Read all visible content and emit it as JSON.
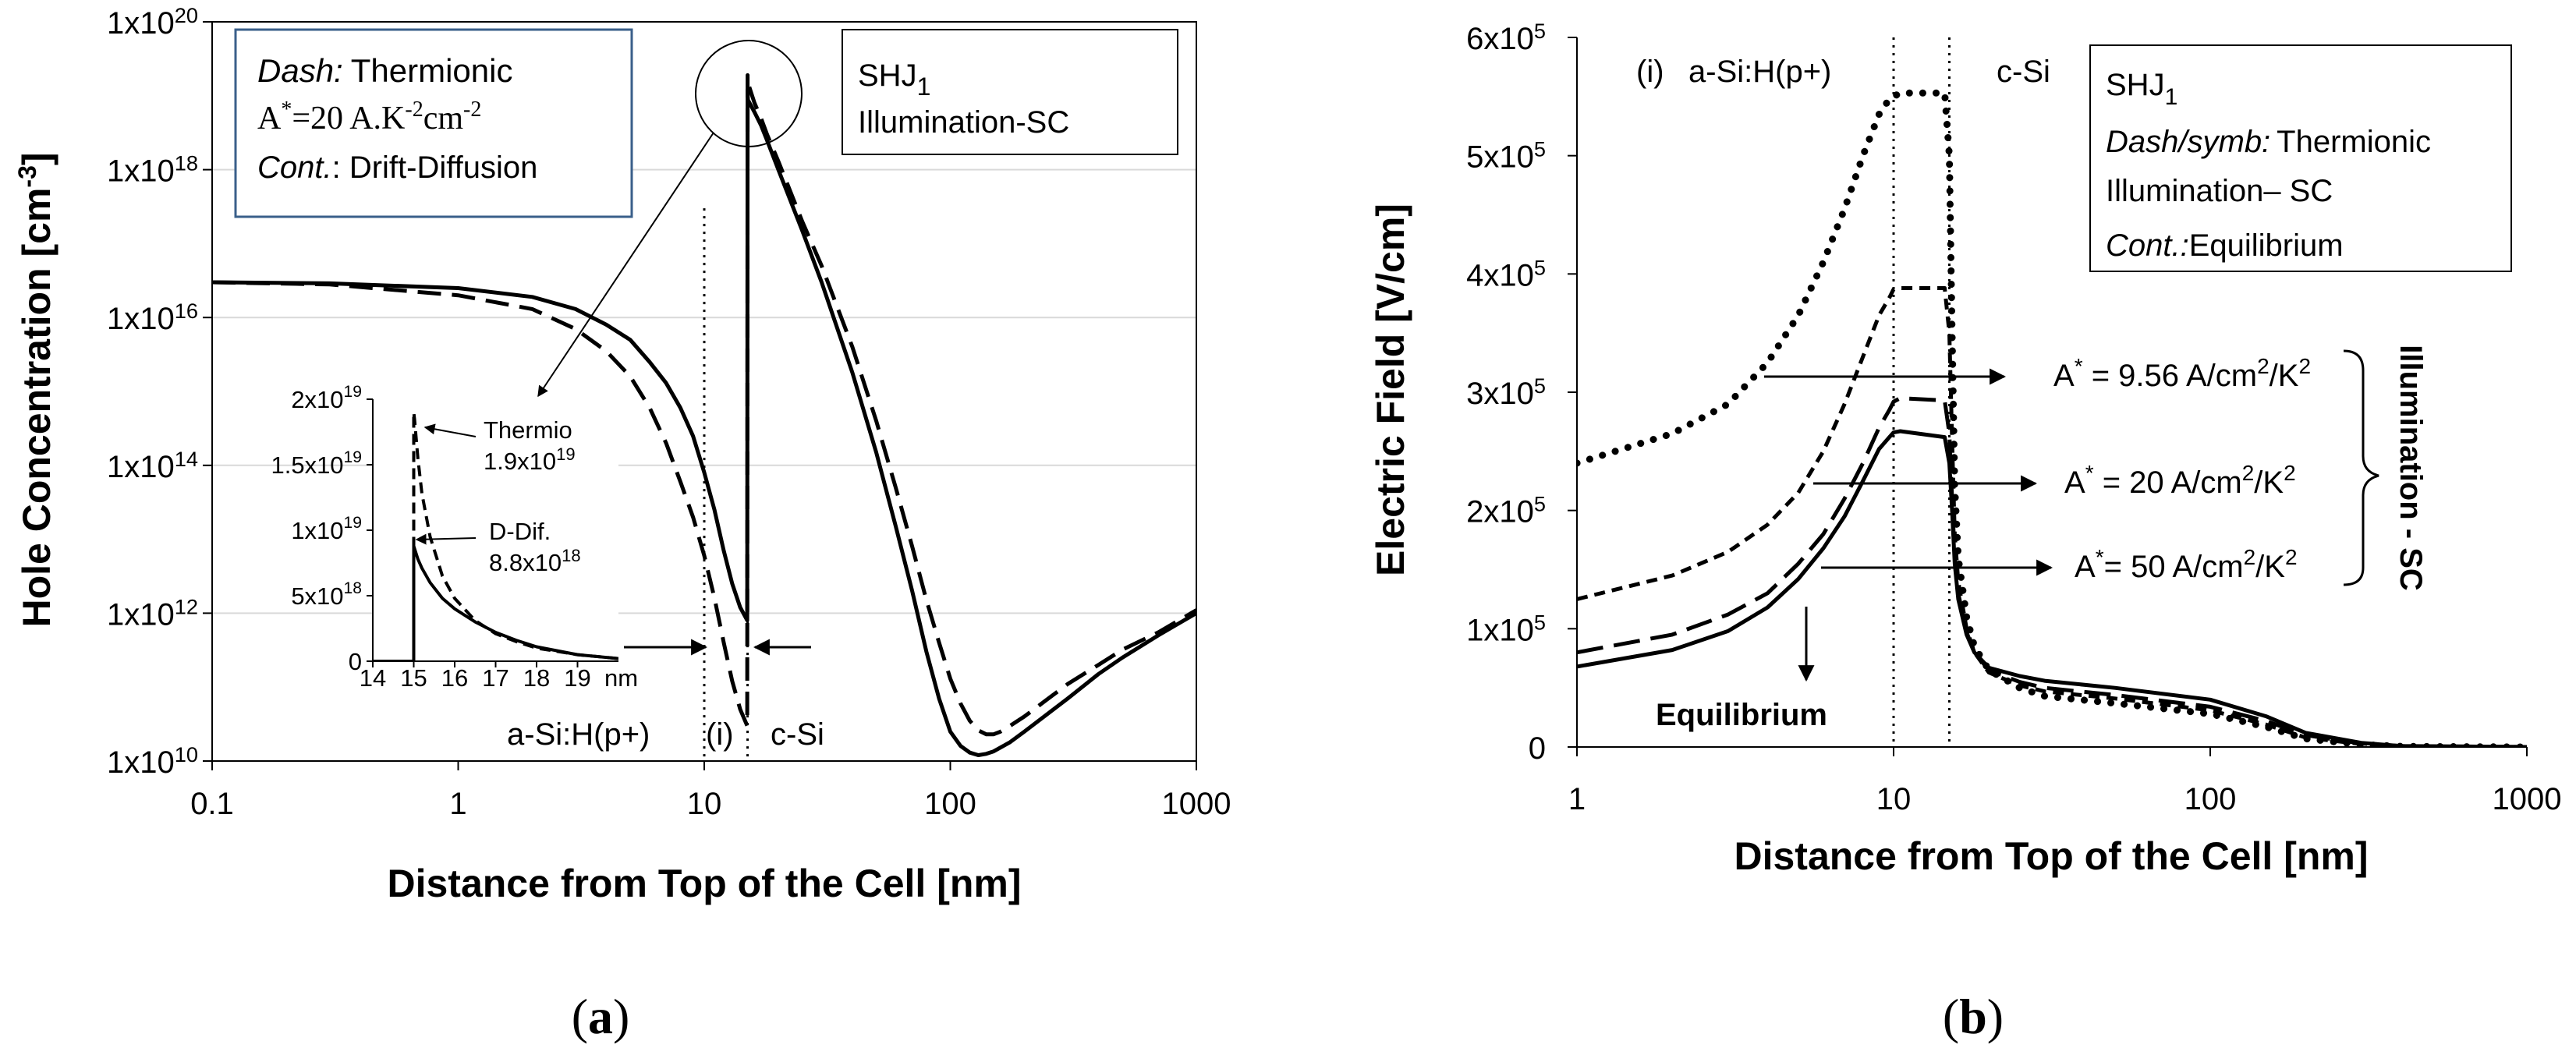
{
  "figure": {
    "caption_a": "(a)",
    "caption_a_letter": "a",
    "caption_b": "(b)",
    "caption_b_letter": "b"
  },
  "colors": {
    "ink": "#000000",
    "box_border_a": "#3a5f8a",
    "background": "#ffffff"
  },
  "chart_data": [
    {
      "id": "a",
      "type": "line",
      "xscale": "log",
      "yscale": "log",
      "xlabel": "Distance from Top of the Cell [nm]",
      "ylabel_main": "Hole Concentration [cm",
      "ylabel_sup": "-3",
      "ylabel_close": "]",
      "xlim": [
        0.1,
        1000
      ],
      "ylim": [
        10000000000.0,
        1e+20
      ],
      "x_ticks": [
        0.1,
        1,
        10,
        100,
        1000
      ],
      "x_tick_labels": [
        "0.1",
        "1",
        "10",
        "100",
        "1000"
      ],
      "y_ticks": [
        10000000000.0,
        1000000000000.0,
        100000000000000.0,
        1e+16,
        1e+18,
        1e+20
      ],
      "y_tick_base": [
        "1x10",
        "1x10",
        "1x10",
        "1x10",
        "1x10",
        "1x10"
      ],
      "y_tick_exp": [
        "10",
        "12",
        "14",
        "16",
        "18",
        "20"
      ],
      "vlines": [
        10,
        15
      ],
      "series": [
        {
          "name": "Cont.: Drift-Diffusion",
          "style": "solid",
          "x": [
            0.1,
            0.3,
            1,
            2,
            3,
            4,
            5,
            6,
            7,
            8,
            9,
            10,
            11,
            12,
            13,
            14,
            14.95,
            15,
            15.05,
            16,
            17,
            18,
            20,
            25,
            30,
            40,
            50,
            60,
            70,
            80,
            90,
            100,
            110,
            120,
            130,
            140,
            150,
            175,
            200,
            300,
            400,
            500,
            700,
            1000
          ],
          "y": [
            3e+16,
            2.9e+16,
            2.5e+16,
            1.9e+16,
            1.3e+16,
            8000000000000000.0,
            5000000000000000.0,
            2500000000000000.0,
            1300000000000000.0,
            600000000000000.0,
            250000000000000.0,
            80000000000000.0,
            25000000000000.0,
            7000000000000.0,
            2500000000000.0,
            1200000000000.0,
            800000000000.0,
            1.2e+19,
            8.8e+18,
            6e+18,
            4e+18,
            2.5e+18,
            1e+18,
            1.5e+17,
            3e+16,
            1800000000000000.0,
            150000000000000.0,
            15000000000000.0,
            2000000000000.0,
            300000000000.0,
            70000000000.0,
            25000000000.0,
            16000000000.0,
            13000000000.0,
            12000000000.0,
            12500000000.0,
            13500000000.0,
            18000000000.0,
            25000000000.0,
            70000000000.0,
            150000000000.0,
            250000000000.0,
            500000000000.0,
            1000000000000.0
          ]
        },
        {
          "name": "Dash: Thermionic",
          "style": "dashed",
          "x": [
            0.1,
            0.3,
            1,
            2,
            3,
            4,
            5,
            6,
            7,
            8,
            9,
            10,
            11,
            12,
            13,
            14,
            14.95,
            15,
            15.05,
            16,
            17,
            18,
            20,
            25,
            30,
            40,
            50,
            60,
            70,
            80,
            90,
            100,
            110,
            120,
            130,
            140,
            150,
            160,
            175,
            200,
            250,
            300,
            400,
            500,
            700,
            1000
          ],
          "y": [
            3e+16,
            2.8e+16,
            2e+16,
            1.3e+16,
            7000000000000000.0,
            3500000000000000.0,
            1600000000000000.0,
            600000000000000.0,
            200000000000000.0,
            60000000000000.0,
            20000000000000.0,
            6000000000000.0,
            1600000000000.0,
            400000000000.0,
            120000000000.0,
            50000000000.0,
            30000000000.0,
            1.9e+19,
            1.5e+19,
            8e+18,
            5e+18,
            3e+18,
            1.3e+18,
            2e+17,
            5e+16,
            4000000000000000.0,
            400000000000000.0,
            50000000000000.0,
            8000000000000.0,
            1500000000000.0,
            400000000000.0,
            130000000000.0,
            60000000000.0,
            35000000000.0,
            26000000000.0,
            23000000000.0,
            23000000000.0,
            25000000000.0,
            30000000000.0,
            40000000000.0,
            70000000000.0,
            110000000000.0,
            200000000000.0,
            320000000000.0,
            550000000000.0,
            1100000000000.0
          ]
        }
      ],
      "legend": {
        "dash_label": "Dash:",
        "dash_text": "Thermionic",
        "astar_prefix": "A",
        "astar_sup": "*",
        "astar_value": "=20 A.K",
        "astar_exp1": "-2",
        "astar_unit": "cm",
        "astar_exp2": "-2",
        "cont_label": "Cont.",
        "cont_text": ": Drift-Diffusion"
      },
      "sample_box": {
        "title": "SHJ",
        "title_sub": "1",
        "subtitle": "Illumination-SC"
      },
      "region_labels": [
        "a-Si:H(p+)",
        "(i)",
        "c-Si"
      ],
      "inset": {
        "xlim": [
          14,
          20
        ],
        "ylim": [
          0,
          2e+19
        ],
        "x_ticks": [
          14,
          15,
          16,
          17,
          18,
          19
        ],
        "x_tick_labels": [
          "14",
          "15",
          "16",
          "17",
          "18",
          "19"
        ],
        "x_unit": "nm",
        "y_ticks": [
          0,
          5e+18,
          1e+19,
          1.5e+19,
          2e+19
        ],
        "y_tick_labels": [
          "0",
          "5x10",
          "1x10",
          "1.5x10",
          "2x10"
        ],
        "y_tick_exp": [
          "",
          "18",
          "19",
          "19",
          "19"
        ],
        "annotations": [
          {
            "label": "Thermio",
            "value": "1.9x10",
            "exp": "19"
          },
          {
            "label": "D-Dif.",
            "value": "8.8x10",
            "exp": "18"
          }
        ],
        "series": [
          {
            "name": "Thermionic",
            "style": "dashed",
            "x": [
              15.0,
              15.02,
              15.1,
              15.2,
              15.4,
              15.7,
              16,
              16.5,
              17,
              17.5,
              18,
              19,
              20
            ],
            "y": [
              1.9e+19,
              1.85e+19,
              1.55e+19,
              1.28e+19,
              9.5e+18,
              6.5e+18,
              4.8e+18,
              3.1e+18,
              2.1e+18,
              1.5e+18,
              1e+18,
              5e+17,
              2e+17
            ]
          },
          {
            "name": "Drift-Diffusion",
            "style": "solid",
            "x": [
              15.0,
              15.02,
              15.1,
              15.2,
              15.4,
              15.7,
              16,
              16.5,
              17,
              17.5,
              18,
              19,
              20
            ],
            "y": [
              8.8e+18,
              8.6e+18,
              7.8e+18,
              7.1e+18,
              6e+18,
              4.8e+18,
              4e+18,
              3e+18,
              2.2e+18,
              1.6e+18,
              1.1e+18,
              5e+17,
              2e+17
            ]
          }
        ]
      }
    },
    {
      "id": "b",
      "type": "line",
      "xscale": "log",
      "yscale": "linear",
      "xlabel": "Distance from Top of the Cell [nm]",
      "ylabel": "Electric Field [V/cm]",
      "xlim": [
        1,
        1000
      ],
      "ylim": [
        0,
        600000
      ],
      "x_ticks": [
        1,
        10,
        100,
        1000
      ],
      "x_tick_labels": [
        "1",
        "10",
        "100",
        "1000"
      ],
      "y_ticks": [
        0,
        100000,
        200000,
        300000,
        400000,
        500000,
        600000
      ],
      "y_tick_base": [
        "0",
        "1x10",
        "2x10",
        "3x10",
        "4x10",
        "5x10",
        "6x10"
      ],
      "y_tick_exp": [
        "",
        "5",
        "5",
        "5",
        "5",
        "5",
        "5"
      ],
      "vlines": [
        10,
        15
      ],
      "series": [
        {
          "name": "A* = 9.56 A/cm2/K2",
          "style": "dotted",
          "x": [
            1,
            2,
            3,
            4,
            5,
            6,
            7,
            8,
            9,
            9.7,
            10,
            10.5,
            14.5,
            15,
            15.3,
            15.6,
            16,
            17,
            18,
            20,
            25,
            30,
            50,
            100,
            150,
            200,
            300,
            400,
            1000
          ],
          "y": [
            240000,
            265000,
            290000,
            325000,
            365000,
            410000,
            455000,
            500000,
            535000,
            548000,
            550000,
            553000,
            553000,
            500000,
            350000,
            220000,
            160000,
            110000,
            85000,
            65000,
            50000,
            43000,
            37000,
            28000,
            17000,
            7000,
            2000,
            500,
            0
          ]
        },
        {
          "name": "A* = 20 A/cm2/K2",
          "style": "short-dash",
          "x": [
            1,
            2,
            3,
            4,
            5,
            6,
            7,
            8,
            9,
            9.7,
            10,
            10.5,
            14.5,
            15,
            15.3,
            15.6,
            16,
            17,
            18,
            20,
            25,
            30,
            50,
            100,
            150,
            200,
            300,
            400,
            1000
          ],
          "y": [
            125000,
            145000,
            165000,
            188000,
            215000,
            250000,
            290000,
            330000,
            365000,
            380000,
            387000,
            388000,
            388000,
            350000,
            260000,
            180000,
            140000,
            100000,
            80000,
            63000,
            52000,
            47000,
            41000,
            31000,
            19000,
            8000,
            2500,
            600,
            0
          ]
        },
        {
          "name": "A* = 50 A/cm2/K2",
          "style": "long-dash",
          "x": [
            1,
            2,
            3,
            4,
            5,
            6,
            7,
            8,
            9,
            9.7,
            10,
            10.5,
            14.5,
            15,
            15.3,
            15.6,
            16,
            17,
            18,
            20,
            25,
            30,
            50,
            100,
            150,
            200,
            300,
            400,
            1000
          ],
          "y": [
            80000,
            95000,
            112000,
            130000,
            155000,
            180000,
            210000,
            240000,
            270000,
            285000,
            292000,
            295000,
            293000,
            265000,
            210000,
            160000,
            130000,
            97000,
            80000,
            65000,
            55000,
            50000,
            44000,
            34000,
            22000,
            10000,
            3000,
            800,
            0
          ]
        },
        {
          "name": "Cont.: Equilibrium",
          "style": "solid",
          "x": [
            1,
            2,
            3,
            4,
            5,
            6,
            7,
            8,
            9,
            9.7,
            10,
            10.5,
            14.5,
            15,
            15.3,
            15.6,
            16,
            17,
            18,
            20,
            25,
            30,
            50,
            100,
            150,
            200,
            300,
            400,
            1000
          ],
          "y": [
            68000,
            82000,
            98000,
            118000,
            142000,
            168000,
            195000,
            225000,
            252000,
            262000,
            266000,
            267000,
            262000,
            240000,
            200000,
            155000,
            125000,
            95000,
            80000,
            67000,
            60000,
            56000,
            50000,
            40000,
            26000,
            12000,
            3500,
            800,
            0
          ]
        }
      ],
      "region_labels": [
        "a-Si:H(p+)",
        "(i)",
        "c-Si"
      ],
      "legend": {
        "title": "SHJ",
        "title_sub": "1",
        "dash_label": "Dash/symb:",
        "dash_text": "Thermionic",
        "line2": "Illumination– SC",
        "cont_label": "Cont.:",
        "cont_text": "Equilibrium"
      },
      "annotations": [
        {
          "prefix": "A",
          "sup": "*",
          "text": " = 9.56 A/cm",
          "sup2": "2",
          "mid": "/K",
          "sup3": "2"
        },
        {
          "prefix": "A",
          "sup": "*",
          "text": " = 20 A/cm",
          "sup2": "2",
          "mid": "/K",
          "sup3": "2"
        },
        {
          "prefix": "A",
          "sup": "*",
          "text": "= 50 A/cm",
          "sup2": "2",
          "mid": "/K",
          "sup3": "2"
        }
      ],
      "bracket_label": "Illumination - SC",
      "equilibrium_label": "Equilibrium"
    }
  ]
}
